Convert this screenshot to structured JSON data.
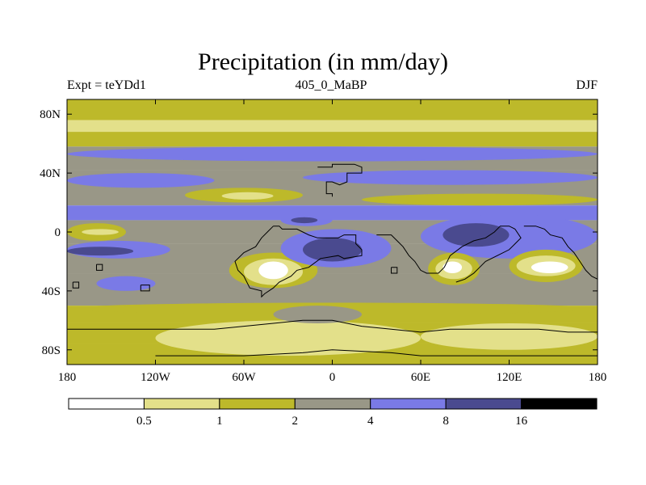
{
  "title": "Precipitation (in mm/day)",
  "subtitle_left": "Expt = teYDd1",
  "subtitle_center": "405_0_MaBP",
  "subtitle_right": "DJF",
  "colors": {
    "c0": "#ffffff",
    "c1": "#e3e08a",
    "c2": "#bdb92a",
    "c3": "#999787",
    "c4": "#7a7ae6",
    "c5": "#4a4a8f",
    "c6": "#000000"
  },
  "colorbar": {
    "bins": [
      "c0",
      "c1",
      "c2",
      "c3",
      "c4",
      "c5",
      "c6"
    ],
    "labels": [
      "0.5",
      "1",
      "2",
      "4",
      "8",
      "16"
    ]
  },
  "chart_data": {
    "type": "heatmap",
    "variable": "Precipitation",
    "units": "mm/day",
    "season": "DJF",
    "levels": [
      0.5,
      1,
      2,
      4,
      8,
      16
    ],
    "x_range": [
      -180,
      180
    ],
    "y_range": [
      -90,
      90
    ],
    "x_ticks": [
      {
        "value": -180,
        "label": "180"
      },
      {
        "value": -120,
        "label": "120W"
      },
      {
        "value": -60,
        "label": "60W"
      },
      {
        "value": 0,
        "label": "0"
      },
      {
        "value": 60,
        "label": "60E"
      },
      {
        "value": 120,
        "label": "120E"
      },
      {
        "value": 180,
        "label": "180"
      }
    ],
    "y_ticks": [
      {
        "value": 80,
        "label": "80N"
      },
      {
        "value": 40,
        "label": "40N"
      },
      {
        "value": 0,
        "label": "0"
      },
      {
        "value": -40,
        "label": "40S"
      },
      {
        "value": -80,
        "label": "80S"
      }
    ],
    "zonal_bands": [
      {
        "lat_min": 76,
        "lat_max": 90,
        "class": "c2"
      },
      {
        "lat_min": 68,
        "lat_max": 76,
        "class": "c1"
      },
      {
        "lat_min": 58,
        "lat_max": 68,
        "class": "c2"
      },
      {
        "lat_min": 42,
        "lat_max": 58,
        "class": "c3"
      },
      {
        "lat_min": 18,
        "lat_max": 42,
        "class": "c3"
      },
      {
        "lat_min": 8,
        "lat_max": 18,
        "class": "c4"
      },
      {
        "lat_min": -8,
        "lat_max": 8,
        "class": "c3"
      },
      {
        "lat_min": -28,
        "lat_max": -8,
        "class": "c3"
      },
      {
        "lat_min": -50,
        "lat_max": -28,
        "class": "c3"
      },
      {
        "lat_min": -62,
        "lat_max": -50,
        "class": "c2"
      },
      {
        "lat_min": -76,
        "lat_max": -62,
        "class": "c2"
      },
      {
        "lat_min": -90,
        "lat_max": -76,
        "class": "c2"
      }
    ],
    "regions": [
      {
        "class": "c4",
        "lon_min": -180,
        "lon_max": 180,
        "lat_min": 48,
        "lat_max": 58
      },
      {
        "class": "c4",
        "lon_min": -20,
        "lon_max": 180,
        "lat_min": 32,
        "lat_max": 42
      },
      {
        "class": "c4",
        "lon_min": -180,
        "lon_max": -80,
        "lat_min": 30,
        "lat_max": 40
      },
      {
        "class": "c2",
        "lon_min": -100,
        "lon_max": -20,
        "lat_min": 20,
        "lat_max": 30
      },
      {
        "class": "c1",
        "lon_min": -75,
        "lon_max": -40,
        "lat_min": 22,
        "lat_max": 27
      },
      {
        "class": "c2",
        "lon_min": 20,
        "lon_max": 180,
        "lat_min": 18,
        "lat_max": 26
      },
      {
        "class": "c2",
        "lon_min": -180,
        "lon_max": -140,
        "lat_min": -6,
        "lat_max": 6
      },
      {
        "class": "c1",
        "lon_min": -170,
        "lon_max": -145,
        "lat_min": -2,
        "lat_max": 2
      },
      {
        "class": "c4",
        "lon_min": -180,
        "lon_max": -110,
        "lat_min": -18,
        "lat_max": -6
      },
      {
        "class": "c5",
        "lon_min": -180,
        "lon_max": -135,
        "lat_min": -16,
        "lat_max": -10
      },
      {
        "class": "c2",
        "lon_min": -70,
        "lon_max": -10,
        "lat_min": -38,
        "lat_max": -14
      },
      {
        "class": "c1",
        "lon_min": -60,
        "lon_max": -20,
        "lat_min": -36,
        "lat_max": -18
      },
      {
        "class": "c0",
        "lon_min": -50,
        "lon_max": -30,
        "lat_min": -32,
        "lat_max": -20
      },
      {
        "class": "c4",
        "lon_min": -35,
        "lon_max": 40,
        "lat_min": -24,
        "lat_max": 2
      },
      {
        "class": "c5",
        "lon_min": -20,
        "lon_max": 20,
        "lat_min": -20,
        "lat_max": -4
      },
      {
        "class": "c4",
        "lon_min": -35,
        "lon_max": 0,
        "lat_min": 4,
        "lat_max": 12
      },
      {
        "class": "c5",
        "lon_min": -28,
        "lon_max": -10,
        "lat_min": 6,
        "lat_max": 10
      },
      {
        "class": "c4",
        "lon_min": 60,
        "lon_max": 180,
        "lat_min": -18,
        "lat_max": 12
      },
      {
        "class": "c5",
        "lon_min": 75,
        "lon_max": 120,
        "lat_min": -10,
        "lat_max": 6
      },
      {
        "class": "c2",
        "lon_min": 65,
        "lon_max": 100,
        "lat_min": -36,
        "lat_max": -14
      },
      {
        "class": "c1",
        "lon_min": 70,
        "lon_max": 95,
        "lat_min": -32,
        "lat_max": -18
      },
      {
        "class": "c0",
        "lon_min": 75,
        "lon_max": 88,
        "lat_min": -28,
        "lat_max": -20
      },
      {
        "class": "c2",
        "lon_min": 120,
        "lon_max": 170,
        "lat_min": -34,
        "lat_max": -12
      },
      {
        "class": "c1",
        "lon_min": 125,
        "lon_max": 165,
        "lat_min": -30,
        "lat_max": -16
      },
      {
        "class": "c0",
        "lon_min": 135,
        "lon_max": 160,
        "lat_min": -28,
        "lat_max": -20
      },
      {
        "class": "c4",
        "lon_min": -160,
        "lon_max": -120,
        "lat_min": -40,
        "lat_max": -30
      },
      {
        "class": "c2",
        "lon_min": -180,
        "lon_max": 180,
        "lat_min": -56,
        "lat_max": -48
      },
      {
        "class": "c1",
        "lon_min": -120,
        "lon_max": 60,
        "lat_min": -84,
        "lat_max": -60
      },
      {
        "class": "c1",
        "lon_min": 60,
        "lon_max": 180,
        "lat_min": -80,
        "lat_max": -62
      },
      {
        "class": "c3",
        "lon_min": -40,
        "lon_max": 20,
        "lat_min": -62,
        "lat_max": -50
      }
    ],
    "coastlines": [
      [
        [
          -10,
          44
        ],
        [
          0,
          44
        ],
        [
          0,
          46
        ],
        [
          15,
          46
        ],
        [
          20,
          44
        ],
        [
          20,
          40
        ],
        [
          10,
          40
        ],
        [
          10,
          34
        ],
        [
          5,
          32
        ],
        [
          0,
          34
        ],
        [
          -4,
          34
        ],
        [
          -4,
          26
        ],
        [
          0,
          26
        ],
        [
          0,
          24
        ]
      ],
      [
        [
          -40,
          4
        ],
        [
          -36,
          4
        ],
        [
          -34,
          2
        ],
        [
          -24,
          2
        ],
        [
          -20,
          0
        ],
        [
          -16,
          -2
        ],
        [
          -10,
          -4
        ],
        [
          4,
          -4
        ],
        [
          8,
          -2
        ],
        [
          16,
          -2
        ],
        [
          16,
          -8
        ],
        [
          20,
          -12
        ],
        [
          20,
          -16
        ],
        [
          8,
          -18
        ],
        [
          4,
          -16
        ],
        [
          -8,
          -18
        ],
        [
          -16,
          -24
        ],
        [
          -24,
          -26
        ],
        [
          -28,
          -30
        ],
        [
          -36,
          -34
        ],
        [
          -40,
          -38
        ],
        [
          -46,
          -42
        ],
        [
          -48,
          -44
        ],
        [
          -48,
          -40
        ],
        [
          -56,
          -38
        ],
        [
          -60,
          -30
        ],
        [
          -64,
          -26
        ],
        [
          -66,
          -20
        ],
        [
          -60,
          -14
        ],
        [
          -52,
          -10
        ],
        [
          -48,
          -4
        ],
        [
          -44,
          0
        ],
        [
          -40,
          4
        ]
      ],
      [
        [
          30,
          -2
        ],
        [
          40,
          -2
        ],
        [
          44,
          -6
        ],
        [
          48,
          -10
        ],
        [
          52,
          -16
        ],
        [
          56,
          -20
        ],
        [
          60,
          -26
        ],
        [
          64,
          -28
        ],
        [
          72,
          -28
        ],
        [
          76,
          -24
        ],
        [
          80,
          -16
        ],
        [
          88,
          -10
        ],
        [
          96,
          -6
        ],
        [
          104,
          -4
        ],
        [
          110,
          0
        ],
        [
          114,
          4
        ],
        [
          120,
          4
        ],
        [
          124,
          2
        ],
        [
          128,
          -4
        ],
        [
          124,
          -8
        ],
        [
          120,
          -12
        ],
        [
          112,
          -16
        ],
        [
          104,
          -20
        ],
        [
          100,
          -24
        ],
        [
          96,
          -28
        ],
        [
          90,
          -32
        ],
        [
          84,
          -34
        ]
      ],
      [
        [
          130,
          4
        ],
        [
          138,
          4
        ],
        [
          144,
          2
        ],
        [
          148,
          -2
        ],
        [
          156,
          -4
        ],
        [
          160,
          -10
        ],
        [
          164,
          -14
        ],
        [
          168,
          -20
        ],
        [
          172,
          -26
        ],
        [
          176,
          -30
        ],
        [
          180,
          -32
        ]
      ],
      [
        [
          -180,
          -66
        ],
        [
          -160,
          -66
        ],
        [
          -140,
          -66
        ],
        [
          -120,
          -66
        ],
        [
          -100,
          -66
        ],
        [
          -80,
          -66
        ],
        [
          -60,
          -64
        ],
        [
          -40,
          -62
        ],
        [
          -20,
          -60
        ],
        [
          0,
          -60
        ],
        [
          10,
          -62
        ],
        [
          20,
          -64
        ],
        [
          40,
          -66
        ],
        [
          60,
          -68
        ],
        [
          80,
          -66
        ],
        [
          100,
          -66
        ],
        [
          120,
          -66
        ],
        [
          140,
          -66
        ],
        [
          160,
          -68
        ],
        [
          180,
          -68
        ]
      ],
      [
        [
          -120,
          -84
        ],
        [
          -60,
          -84
        ],
        [
          -20,
          -82
        ],
        [
          0,
          -80
        ],
        [
          40,
          -82
        ],
        [
          60,
          -84
        ],
        [
          100,
          -84
        ],
        [
          140,
          -84
        ],
        [
          180,
          -84
        ]
      ],
      [
        [
          -160,
          -22
        ],
        [
          -156,
          -22
        ],
        [
          -156,
          -26
        ],
        [
          -160,
          -26
        ],
        [
          -160,
          -22
        ]
      ],
      [
        [
          -176,
          -34
        ],
        [
          -172,
          -34
        ],
        [
          -172,
          -38
        ],
        [
          -176,
          -38
        ],
        [
          -176,
          -34
        ]
      ],
      [
        [
          -130,
          -36
        ],
        [
          -124,
          -36
        ],
        [
          -124,
          -40
        ],
        [
          -130,
          -40
        ],
        [
          -130,
          -36
        ]
      ],
      [
        [
          40,
          -24
        ],
        [
          44,
          -24
        ],
        [
          44,
          -28
        ],
        [
          40,
          -28
        ],
        [
          40,
          -24
        ]
      ]
    ]
  }
}
